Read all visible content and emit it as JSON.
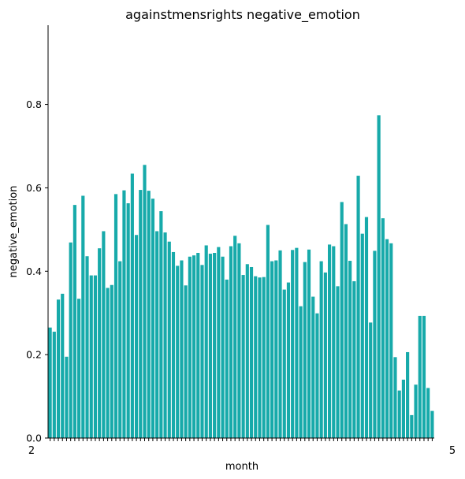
{
  "chart_data": {
    "type": "bar",
    "title": "againstmensrights negative_emotion",
    "xlabel": "month",
    "ylabel": "negative_emotion",
    "ylim": [
      0,
      0.99
    ],
    "yticks": [
      0.0,
      0.2,
      0.4,
      0.6,
      0.8
    ],
    "ytick_labels": [
      "0.0",
      "0.2",
      "0.4",
      "0.6",
      "0.8"
    ],
    "first_xtick_label": "2",
    "last_xtick_label": "5",
    "bar_color": "#17aaaa",
    "grid": false,
    "values": [
      0.265,
      0.255,
      0.332,
      0.346,
      0.195,
      0.469,
      0.559,
      0.334,
      0.581,
      0.436,
      0.39,
      0.39,
      0.455,
      0.496,
      0.36,
      0.367,
      0.585,
      0.424,
      0.594,
      0.563,
      0.634,
      0.487,
      0.595,
      0.655,
      0.593,
      0.574,
      0.496,
      0.544,
      0.493,
      0.471,
      0.446,
      0.413,
      0.426,
      0.366,
      0.435,
      0.438,
      0.444,
      0.415,
      0.462,
      0.442,
      0.444,
      0.458,
      0.435,
      0.38,
      0.46,
      0.485,
      0.467,
      0.391,
      0.417,
      0.41,
      0.388,
      0.385,
      0.386,
      0.511,
      0.424,
      0.426,
      0.45,
      0.356,
      0.373,
      0.451,
      0.456,
      0.316,
      0.422,
      0.452,
      0.339,
      0.299,
      0.424,
      0.397,
      0.464,
      0.46,
      0.364,
      0.566,
      0.513,
      0.425,
      0.376,
      0.629,
      0.49,
      0.53,
      0.277,
      0.449,
      0.774,
      0.527,
      0.477,
      0.467,
      0.194,
      0.114,
      0.14,
      0.206,
      0.055,
      0.128,
      0.293,
      0.293,
      0.12,
      0.065
    ]
  }
}
